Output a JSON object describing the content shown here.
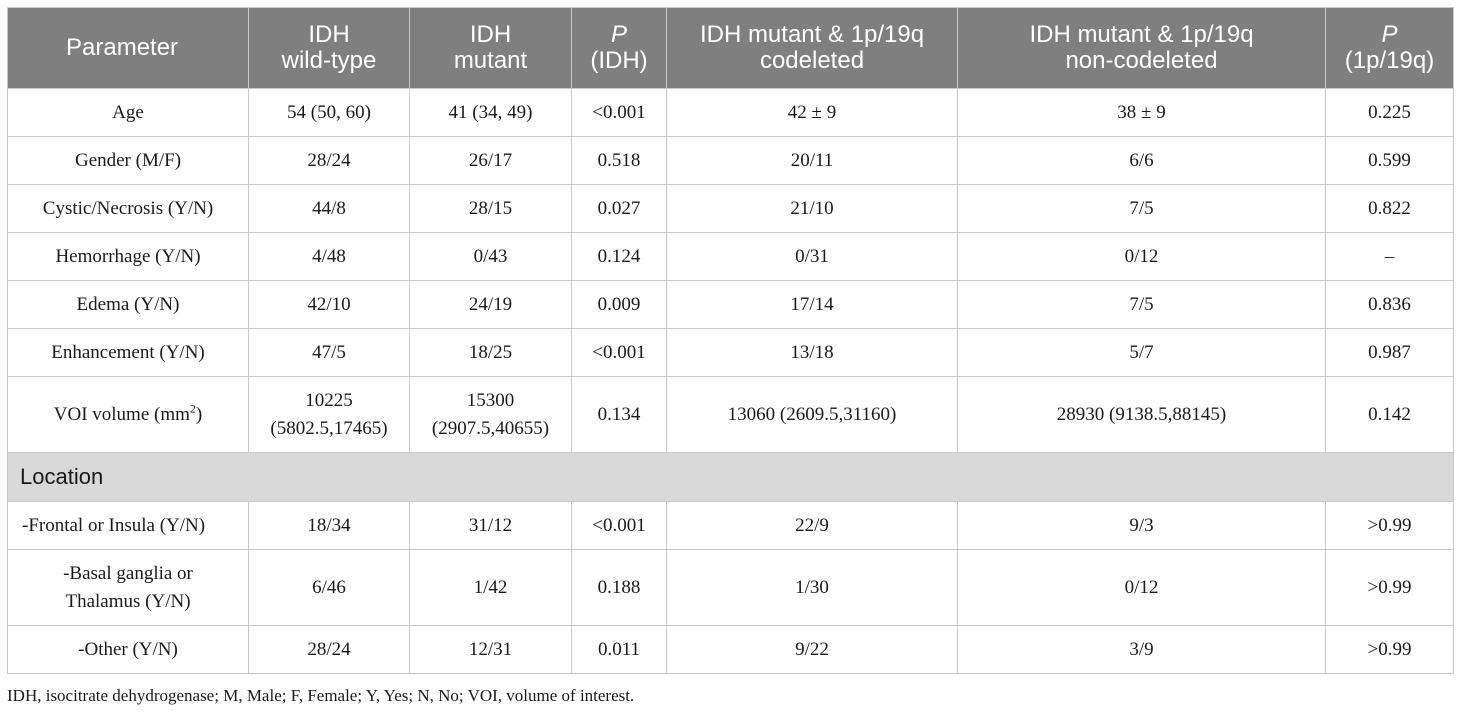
{
  "header": {
    "parameter": "Parameter",
    "idh_wt": [
      "IDH",
      "wild-type"
    ],
    "idh_mut": [
      "IDH",
      "mutant"
    ],
    "p_idh": [
      "P",
      "(IDH)"
    ],
    "codel": [
      "IDH mutant & 1p/19q",
      "codeleted"
    ],
    "noncodel": [
      "IDH mutant & 1p/19q",
      "non-codeleted"
    ],
    "p_1p19q": [
      "P",
      "(1p/19q)"
    ]
  },
  "rows": [
    {
      "param": "Age",
      "wt": "54 (50, 60)",
      "mut": "41 (34, 49)",
      "p_idh": "<0.001",
      "codel": "42 ± 9",
      "noncodel": "38 ± 9",
      "p_1p19q": "0.225"
    },
    {
      "param": "Gender (M/F)",
      "wt": "28/24",
      "mut": "26/17",
      "p_idh": "0.518",
      "codel": "20/11",
      "noncodel": "6/6",
      "p_1p19q": "0.599"
    },
    {
      "param": "Cystic/Necrosis (Y/N)",
      "wt": "44/8",
      "mut": "28/15",
      "p_idh": "0.027",
      "codel": "21/10",
      "noncodel": "7/5",
      "p_1p19q": "0.822"
    },
    {
      "param": "Hemorrhage (Y/N)",
      "wt": "4/48",
      "mut": "0/43",
      "p_idh": "0.124",
      "codel": "0/31",
      "noncodel": "0/12",
      "p_1p19q": "–"
    },
    {
      "param": "Edema (Y/N)",
      "wt": "42/10",
      "mut": "24/19",
      "p_idh": "0.009",
      "codel": "17/14",
      "noncodel": "7/5",
      "p_1p19q": "0.836"
    },
    {
      "param": "Enhancement (Y/N)",
      "wt": "47/5",
      "mut": "18/25",
      "p_idh": "<0.001",
      "codel": "13/18",
      "noncodel": "5/7",
      "p_1p19q": "0.987"
    }
  ],
  "voi_row": {
    "param_prefix": "VOI volume (mm",
    "param_sup": "2",
    "param_suffix": ")",
    "wt": [
      "10225",
      "(5802.5,17465)"
    ],
    "mut": [
      "15300",
      "(2907.5,40655)"
    ],
    "p_idh": "0.134",
    "codel": "13060 (2609.5,31160)",
    "noncodel": "28930 (9138.5,88145)",
    "p_1p19q": "0.142"
  },
  "section_location": "Location",
  "location_rows": [
    {
      "param": [
        "-Frontal or Insula (Y/N)"
      ],
      "wt": "18/34",
      "mut": "31/12",
      "p_idh": "<0.001",
      "codel": "22/9",
      "noncodel": "9/3",
      "p_1p19q": ">0.99"
    },
    {
      "param": [
        "-Basal ganglia or",
        "Thalamus (Y/N)"
      ],
      "wt": "6/46",
      "mut": "1/42",
      "p_idh": "0.188",
      "codel": "1/30",
      "noncodel": "0/12",
      "p_1p19q": ">0.99"
    },
    {
      "param": [
        "-Other (Y/N)"
      ],
      "wt": "28/24",
      "mut": "12/31",
      "p_idh": "0.011",
      "codel": "9/22",
      "noncodel": "3/9",
      "p_1p19q": ">0.99"
    }
  ],
  "footnote": "IDH, isocitrate dehydrogenase; M, Male; F, Female; Y, Yes; N, No; VOI, volume of interest.",
  "colors": {
    "header_bg": "#7f7f7f",
    "section_bg": "#d9d9d9",
    "border": "#c8c8c8"
  }
}
